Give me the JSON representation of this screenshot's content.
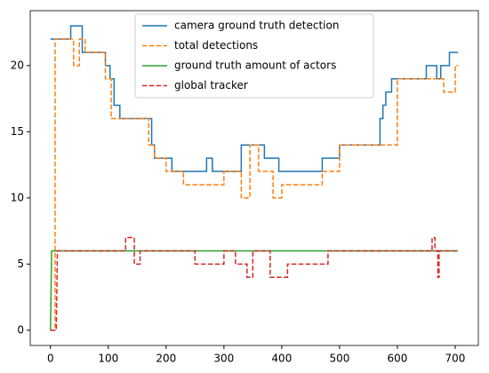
{
  "chart_data": {
    "type": "line",
    "legend": "upper center",
    "xlim": [
      -35,
      740
    ],
    "ylim": [
      -1.15,
      24.15
    ],
    "xticks": [
      0,
      100,
      200,
      300,
      400,
      500,
      600,
      700
    ],
    "yticks": [
      0,
      5,
      10,
      15,
      20
    ],
    "series": [
      {
        "name": "camera ground truth detection",
        "color": "#1f77b4",
        "dash": false,
        "x": [
          0,
          35,
          35,
          55,
          55,
          95,
          95,
          103,
          103,
          110,
          110,
          120,
          120,
          175,
          175,
          180,
          180,
          210,
          210,
          270,
          270,
          280,
          280,
          330,
          330,
          370,
          370,
          395,
          395,
          470,
          470,
          500,
          500,
          570,
          570,
          575,
          575,
          580,
          580,
          590,
          590,
          650,
          650,
          668,
          668,
          675,
          675,
          690,
          690,
          705
        ],
        "values": [
          22,
          22,
          23,
          23,
          21,
          21,
          20,
          20,
          19,
          19,
          17,
          17,
          16,
          16,
          14,
          14,
          13,
          13,
          12,
          12,
          13,
          13,
          12,
          12,
          14,
          14,
          13,
          13,
          12,
          12,
          13,
          13,
          14,
          14,
          16,
          16,
          17,
          17,
          18,
          18,
          19,
          19,
          20,
          20,
          19,
          19,
          20,
          20,
          21,
          21
        ]
      },
      {
        "name": "total detections",
        "color": "#ff7f0e",
        "dash": true,
        "x": [
          0,
          8,
          8,
          40,
          40,
          50,
          50,
          60,
          60,
          95,
          95,
          105,
          105,
          170,
          170,
          180,
          180,
          200,
          200,
          230,
          230,
          300,
          300,
          330,
          330,
          345,
          345,
          360,
          360,
          385,
          385,
          400,
          400,
          470,
          470,
          500,
          500,
          600,
          600,
          680,
          680,
          700,
          700,
          705
        ],
        "values": [
          0,
          0,
          22,
          22,
          20,
          20,
          22,
          22,
          21,
          21,
          19,
          19,
          16,
          16,
          14,
          14,
          13,
          13,
          12,
          12,
          11,
          11,
          12,
          12,
          10,
          10,
          14,
          14,
          12,
          12,
          10,
          10,
          11,
          11,
          12,
          12,
          14,
          14,
          19,
          19,
          18,
          18,
          20,
          20
        ]
      },
      {
        "name": "ground truth amount of actors",
        "color": "#2ca02c",
        "dash": false,
        "x": [
          0,
          2,
          705
        ],
        "values": [
          0,
          6,
          6
        ]
      },
      {
        "name": "global tracker",
        "color": "#d62728",
        "dash": true,
        "x": [
          0,
          10,
          12,
          130,
          130,
          145,
          145,
          155,
          155,
          250,
          250,
          300,
          300,
          320,
          320,
          340,
          340,
          350,
          350,
          380,
          380,
          410,
          410,
          480,
          480,
          660,
          660,
          665,
          665,
          670,
          670,
          672,
          672,
          705
        ],
        "values": [
          0,
          0,
          6,
          6,
          7,
          7,
          5,
          5,
          6,
          6,
          5,
          5,
          6,
          6,
          5,
          5,
          4,
          4,
          6,
          6,
          4,
          4,
          5,
          5,
          6,
          6,
          7,
          7,
          6,
          6,
          4,
          4,
          6,
          6
        ]
      }
    ]
  }
}
